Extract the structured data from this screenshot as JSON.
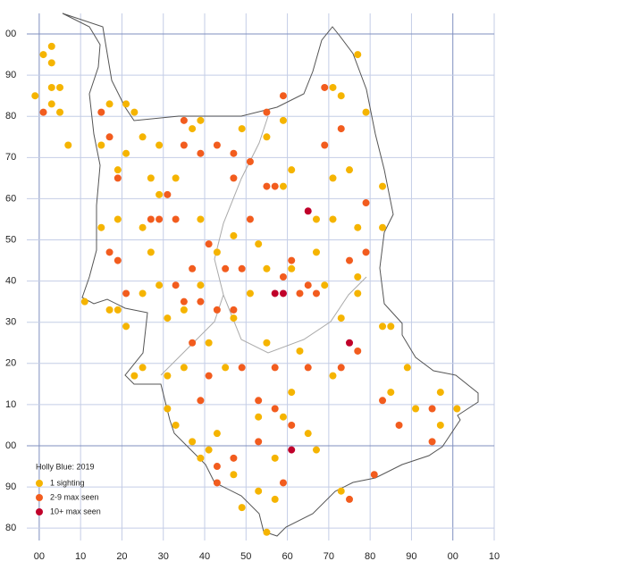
{
  "chart_data": {
    "type": "scatter",
    "title": "Holly Blue:  2019",
    "xlim": [
      -3,
      110
    ],
    "ylim": [
      77,
      205
    ],
    "xticks": [
      {
        "value": 0,
        "label": "00"
      },
      10,
      20,
      30,
      40,
      50,
      60,
      70,
      80,
      90,
      {
        "value": 100,
        "label": "00"
      },
      {
        "value": 110,
        "label": "10"
      }
    ],
    "yticks": [
      80,
      90,
      {
        "value": 100,
        "label": "00"
      },
      {
        "value": 110,
        "label": "10"
      },
      {
        "value": 120,
        "label": "20"
      },
      {
        "value": 130,
        "label": "30"
      },
      {
        "value": 140,
        "label": "40"
      },
      {
        "value": 150,
        "label": "50"
      },
      {
        "value": 160,
        "label": "60"
      },
      {
        "value": 170,
        "label": "70"
      },
      {
        "value": 180,
        "label": "80"
      },
      {
        "value": 190,
        "label": "90"
      },
      {
        "value": 200,
        "label": "00"
      }
    ],
    "grid": true,
    "series": [
      {
        "name": "1 sighting",
        "color": "#f5b400",
        "x": [
          1,
          3,
          3,
          -1,
          3,
          5,
          3,
          5,
          7,
          15,
          17,
          21,
          23,
          25,
          21,
          19,
          15,
          19,
          11,
          17,
          19,
          25,
          21,
          25,
          23,
          31,
          33,
          37,
          39,
          49,
          55,
          53,
          57,
          73,
          91,
          97,
          101,
          97,
          89,
          85,
          83,
          73,
          71,
          73,
          77,
          79,
          75,
          83,
          85,
          77,
          83,
          67,
          71,
          61,
          59,
          55,
          59,
          49,
          37,
          39,
          29,
          27,
          29,
          33,
          25,
          27,
          29,
          31,
          35,
          39,
          43,
          47,
          53,
          55,
          61,
          69,
          77,
          77,
          71,
          67,
          51,
          47,
          41,
          35,
          31,
          45,
          55,
          63,
          71,
          61,
          53,
          59,
          43,
          41,
          47,
          57,
          65,
          67,
          39
        ],
        "y": [
          195,
          197,
          193,
          185,
          187,
          187,
          183,
          181,
          173,
          173,
          183,
          183,
          181,
          175,
          171,
          167,
          153,
          155,
          135,
          133,
          133,
          137,
          129,
          119,
          117,
          109,
          105,
          101,
          97,
          85,
          79,
          89,
          87,
          89,
          109,
          105,
          109,
          113,
          119,
          113,
          129,
          131,
          187,
          185,
          195,
          181,
          167,
          163,
          129,
          153,
          153,
          155,
          155,
          167,
          163,
          175,
          179,
          177,
          177,
          179,
          173,
          165,
          161,
          165,
          153,
          147,
          139,
          131,
          133,
          139,
          147,
          151,
          149,
          143,
          143,
          139,
          137,
          141,
          165,
          147,
          137,
          131,
          125,
          119,
          117,
          119,
          125,
          123,
          117,
          113,
          107,
          107,
          103,
          99,
          93,
          97,
          103,
          99,
          155
        ]
      },
      {
        "name": "2-9 max seen",
        "color": "#f25c1e",
        "x": [
          1,
          15,
          17,
          19,
          17,
          19,
          21,
          27,
          29,
          35,
          35,
          39,
          43,
          47,
          51,
          55,
          57,
          55,
          59,
          69,
          73,
          69,
          79,
          79,
          75,
          67,
          65,
          61,
          49,
          45,
          37,
          33,
          35,
          39,
          43,
          47,
          37,
          41,
          49,
          57,
          65,
          73,
          77,
          83,
          87,
          95,
          53,
          57,
          61,
          53,
          47,
          43,
          43,
          59,
          75,
          81,
          95,
          39,
          33,
          31,
          41,
          47,
          51,
          59,
          63
        ],
        "y": [
          181,
          181,
          175,
          165,
          147,
          145,
          137,
          155,
          155,
          179,
          173,
          171,
          173,
          171,
          169,
          163,
          163,
          181,
          185,
          187,
          177,
          173,
          159,
          147,
          145,
          137,
          139,
          145,
          143,
          143,
          143,
          139,
          135,
          135,
          133,
          133,
          125,
          117,
          119,
          119,
          119,
          119,
          123,
          111,
          105,
          109,
          111,
          109,
          105,
          101,
          97,
          95,
          91,
          91,
          87,
          93,
          101,
          111,
          155,
          161,
          149,
          165,
          155,
          141,
          137
        ]
      },
      {
        "name": "10+ max seen",
        "color": "#c0002a",
        "x": [
          65,
          57,
          59,
          75,
          61
        ],
        "y": [
          157,
          137,
          137,
          125,
          99
        ]
      }
    ]
  }
}
